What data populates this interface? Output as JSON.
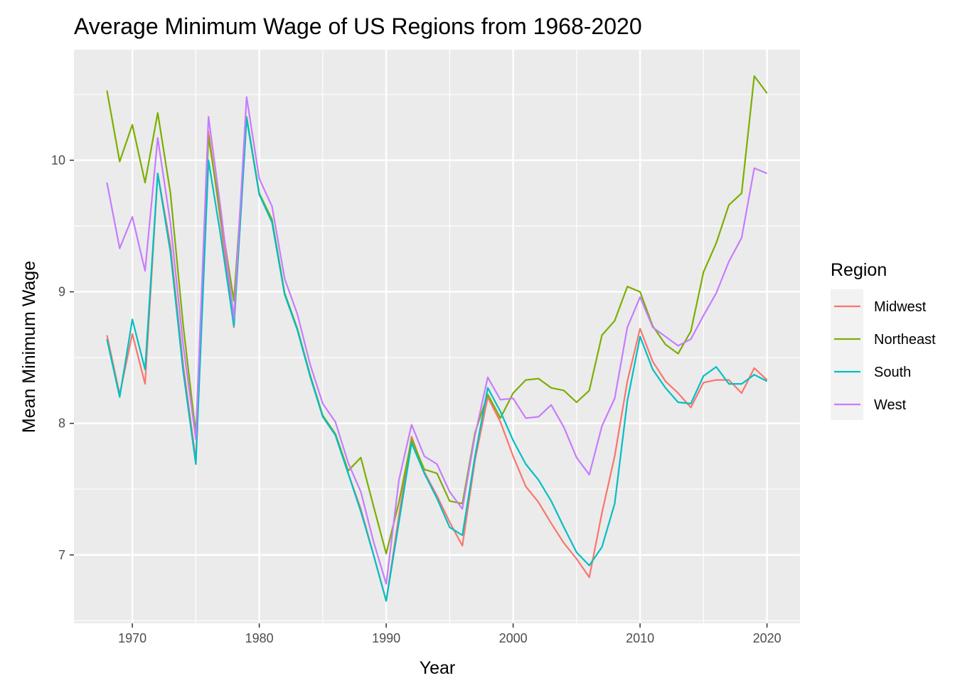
{
  "chart_data": {
    "type": "line",
    "title": "Average Minimum Wage of US Regions from 1968-2020",
    "xlabel": "Year",
    "ylabel": "Mean Minimum Wage",
    "xlim": [
      1965.4,
      2022.6
    ],
    "ylim": [
      6.48,
      10.84
    ],
    "x_ticks": [
      1970,
      1980,
      1990,
      2000,
      2010,
      2020
    ],
    "x_tick_labels": [
      "1970",
      "1980",
      "1990",
      "2000",
      "2010",
      "2020"
    ],
    "y_ticks": [
      7,
      8,
      9,
      10
    ],
    "y_tick_labels": [
      "7",
      "8",
      "9",
      "10"
    ],
    "grid": true,
    "legend_title": "Region",
    "legend_position": "right",
    "x": [
      1968,
      1969,
      1970,
      1971,
      1972,
      1973,
      1974,
      1975,
      1976,
      1977,
      1978,
      1979,
      1980,
      1981,
      1982,
      1983,
      1984,
      1985,
      1986,
      1987,
      1988,
      1989,
      1990,
      1991,
      1992,
      1993,
      1994,
      1995,
      1996,
      1997,
      1998,
      1999,
      2000,
      2001,
      2002,
      2003,
      2004,
      2005,
      2006,
      2007,
      2008,
      2009,
      2010,
      2011,
      2012,
      2013,
      2014,
      2015,
      2016,
      2017,
      2018,
      2019,
      2020
    ],
    "series": [
      {
        "name": "Midwest",
        "color": "#F8766D",
        "values": [
          8.67,
          8.22,
          8.68,
          8.3,
          9.9,
          9.35,
          8.45,
          7.72,
          10.22,
          9.5,
          8.73,
          10.32,
          9.74,
          9.53,
          8.98,
          8.71,
          8.36,
          8.05,
          7.91,
          7.62,
          7.35,
          7.0,
          6.65,
          7.3,
          7.9,
          7.63,
          7.45,
          7.25,
          7.07,
          7.72,
          8.2,
          8.01,
          7.75,
          7.52,
          7.4,
          7.24,
          7.09,
          6.97,
          6.83,
          7.32,
          7.75,
          8.32,
          8.72,
          8.47,
          8.32,
          8.23,
          8.12,
          8.31,
          8.33,
          8.33,
          8.23,
          8.42,
          8.33
        ]
      },
      {
        "name": "Northeast",
        "color": "#7CAE00",
        "values": [
          10.53,
          9.99,
          10.27,
          9.83,
          10.36,
          9.75,
          8.75,
          7.92,
          10.18,
          9.55,
          8.93,
          10.33,
          9.75,
          9.55,
          8.99,
          8.72,
          8.37,
          8.06,
          7.92,
          7.64,
          7.74,
          7.37,
          7.01,
          7.4,
          7.88,
          7.65,
          7.62,
          7.41,
          7.39,
          7.93,
          8.22,
          8.04,
          8.23,
          8.33,
          8.34,
          8.27,
          8.25,
          8.16,
          8.25,
          8.67,
          8.78,
          9.04,
          9.0,
          8.74,
          8.6,
          8.53,
          8.7,
          9.15,
          9.37,
          9.66,
          9.75,
          10.64,
          10.51
        ]
      },
      {
        "name": "South",
        "color": "#00BFC4",
        "values": [
          8.64,
          8.2,
          8.79,
          8.41,
          9.9,
          9.3,
          8.4,
          7.69,
          10.0,
          9.4,
          8.74,
          10.32,
          9.74,
          9.53,
          8.98,
          8.71,
          8.36,
          8.05,
          7.91,
          7.62,
          7.33,
          7.0,
          6.65,
          7.25,
          7.85,
          7.62,
          7.43,
          7.21,
          7.15,
          7.75,
          8.27,
          8.09,
          7.87,
          7.69,
          7.57,
          7.41,
          7.21,
          7.02,
          6.92,
          7.06,
          7.39,
          8.17,
          8.66,
          8.41,
          8.27,
          8.16,
          8.15,
          8.36,
          8.43,
          8.3,
          8.3,
          8.37,
          8.32
        ]
      },
      {
        "name": "West",
        "color": "#C77CFF",
        "values": [
          9.83,
          9.33,
          9.57,
          9.16,
          10.17,
          9.52,
          8.6,
          7.88,
          10.33,
          9.6,
          8.8,
          10.48,
          9.86,
          9.65,
          9.1,
          8.83,
          8.45,
          8.15,
          8.01,
          7.7,
          7.48,
          7.1,
          6.78,
          7.57,
          7.99,
          7.75,
          7.69,
          7.48,
          7.35,
          7.91,
          8.35,
          8.18,
          8.19,
          8.04,
          8.05,
          8.14,
          7.97,
          7.74,
          7.61,
          7.98,
          8.19,
          8.73,
          8.96,
          8.73,
          8.66,
          8.59,
          8.64,
          8.82,
          8.99,
          9.23,
          9.41,
          9.94,
          9.9
        ]
      }
    ]
  }
}
